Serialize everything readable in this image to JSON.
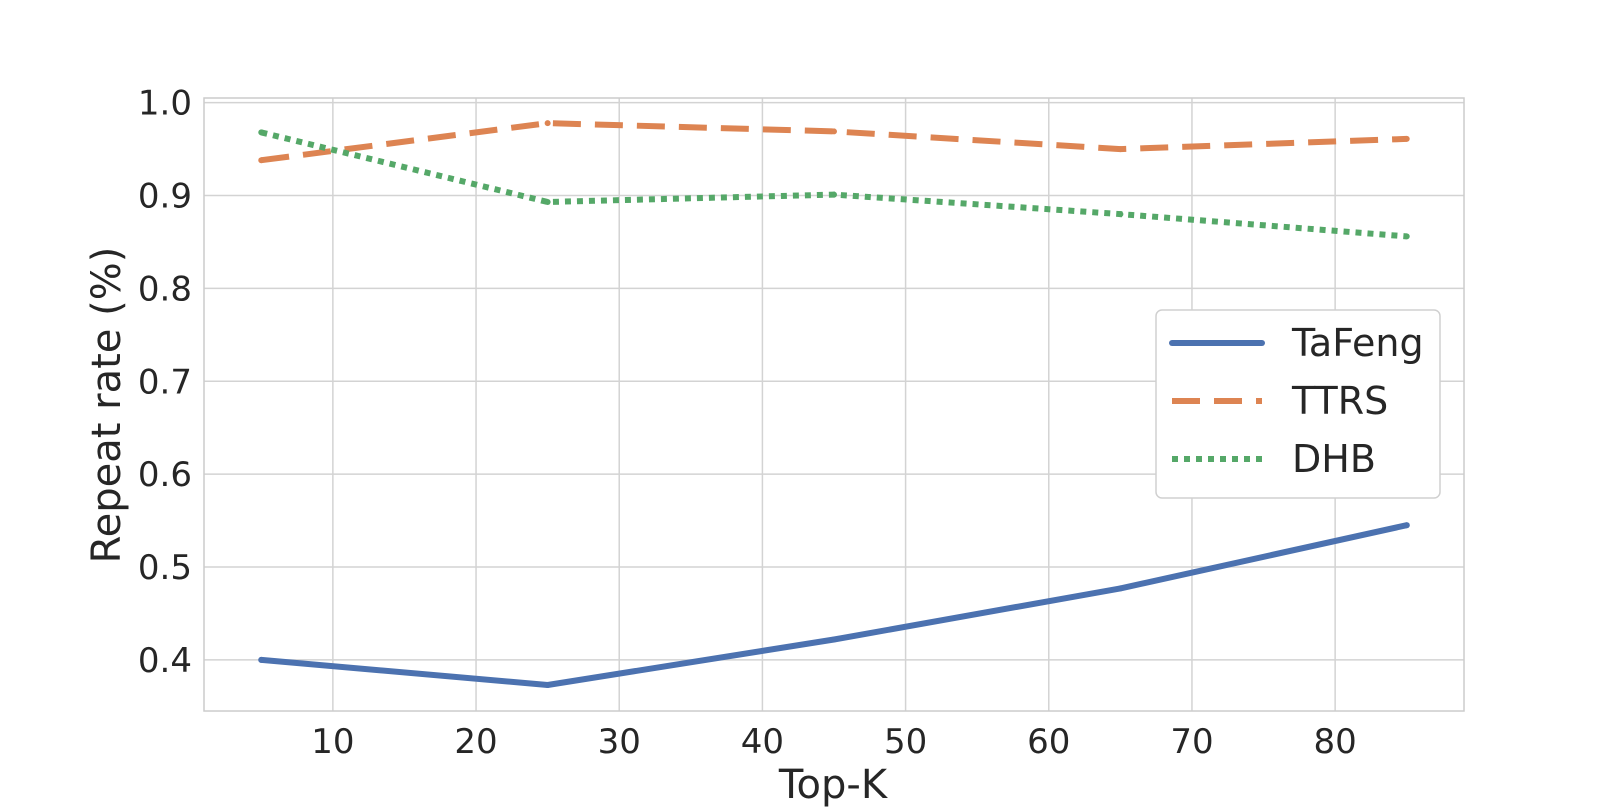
{
  "chart_data": {
    "type": "line",
    "xlabel": "Top-K",
    "ylabel": "Repeat rate (%)",
    "x": [
      5,
      25,
      45,
      65,
      85
    ],
    "xlim": [
      1,
      89
    ],
    "ylim": [
      0.345,
      1.005
    ],
    "xticks": [
      10,
      20,
      30,
      40,
      50,
      60,
      70,
      80
    ],
    "yticks": [
      0.4,
      0.5,
      0.6,
      0.7,
      0.8,
      0.9,
      1.0
    ],
    "xtick_labels": [
      "10",
      "20",
      "30",
      "40",
      "50",
      "60",
      "70",
      "80"
    ],
    "ytick_labels": [
      "0.4",
      "0.5",
      "0.6",
      "0.7",
      "0.8",
      "0.9",
      "1.0"
    ],
    "grid": true,
    "legend_position": "center-right",
    "series": [
      {
        "name": "TaFeng",
        "values": [
          0.4,
          0.373,
          0.422,
          0.477,
          0.545
        ],
        "color": "#4c72b0",
        "style": "solid"
      },
      {
        "name": "TTRS",
        "values": [
          0.938,
          0.978,
          0.969,
          0.95,
          0.961
        ],
        "color": "#dd8452",
        "style": "dashed"
      },
      {
        "name": "DHB",
        "values": [
          0.968,
          0.893,
          0.901,
          0.88,
          0.856
        ],
        "color": "#55a868",
        "style": "dotted"
      }
    ]
  }
}
